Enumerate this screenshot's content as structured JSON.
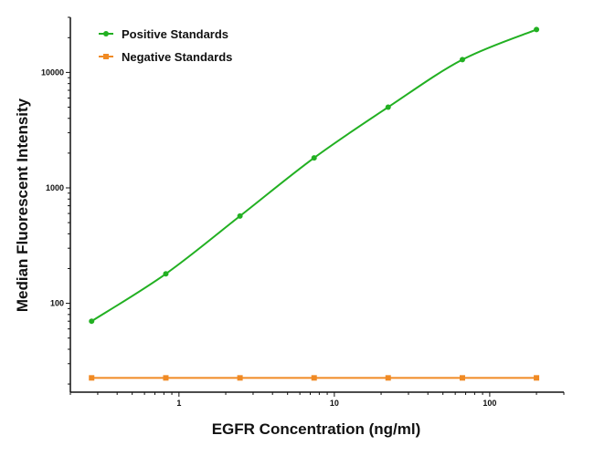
{
  "chart_data": {
    "type": "line",
    "title": "",
    "xlabel": "EGFR Concentration (ng/ml)",
    "ylabel": "Median Fluorescent Intensity",
    "xscale": "log",
    "yscale": "log",
    "xlim": [
      0.2,
      300
    ],
    "ylim": [
      17,
      30000
    ],
    "x_ticks": [
      1,
      10,
      100
    ],
    "x_tick_labels": [
      "1",
      "10",
      "100"
    ],
    "y_ticks": [
      100,
      1000,
      10000
    ],
    "y_tick_labels": [
      "100",
      "1000",
      "10000"
    ],
    "grid": false,
    "legend_position": "top-left",
    "x": [
      0.274,
      0.823,
      2.47,
      7.41,
      22.2,
      66.7,
      200
    ],
    "series": [
      {
        "name": "Positive Standards",
        "color": "#22b022",
        "marker": "circle",
        "values": [
          70,
          180,
          570,
          1820,
          5000,
          12900,
          23500
        ]
      },
      {
        "name": "Negative Standards",
        "color": "#f08a24",
        "marker": "square",
        "values": [
          22.6,
          22.6,
          22.6,
          22.6,
          22.6,
          22.6,
          22.6
        ]
      }
    ]
  }
}
